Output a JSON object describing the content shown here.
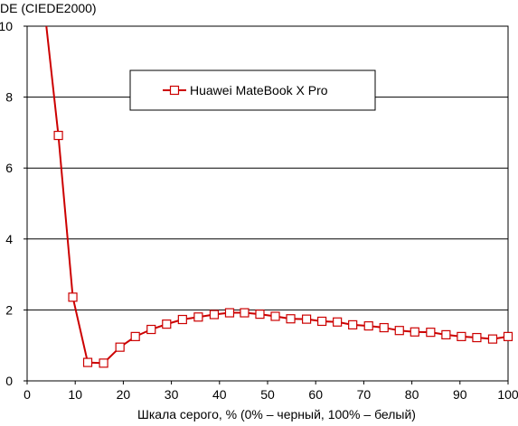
{
  "chart_data": {
    "type": "line",
    "ylabel": "DE (CIEDE2000)",
    "xlabel": "Шкала серого, % (0% – черный, 100% – белый)",
    "xlim": [
      0,
      100
    ],
    "ylim": [
      0,
      10
    ],
    "xticks": [
      "0",
      "10",
      "20",
      "30",
      "40",
      "50",
      "60",
      "70",
      "80",
      "90",
      "100"
    ],
    "yticks": [
      "0",
      "2",
      "4",
      "6",
      "8",
      "10"
    ],
    "grid": "horizontal",
    "legend_position": "top-center",
    "series": [
      {
        "name": "Huawei MateBook X Pro",
        "color": "#cc0000",
        "marker": "open-square",
        "line_start": {
          "x": 4.0,
          "y": 10.0
        },
        "x": [
          6.5,
          9.5,
          12.6,
          15.9,
          19.3,
          22.5,
          25.8,
          29.0,
          32.3,
          35.6,
          38.9,
          42.1,
          45.2,
          48.4,
          51.6,
          54.8,
          58.1,
          61.3,
          64.5,
          67.7,
          71.0,
          74.2,
          77.4,
          80.6,
          83.9,
          87.1,
          90.3,
          93.5,
          96.8,
          100.0
        ],
        "y": [
          6.92,
          2.36,
          0.52,
          0.5,
          0.95,
          1.25,
          1.45,
          1.6,
          1.73,
          1.8,
          1.87,
          1.92,
          1.92,
          1.88,
          1.82,
          1.75,
          1.74,
          1.68,
          1.66,
          1.58,
          1.55,
          1.5,
          1.42,
          1.38,
          1.37,
          1.3,
          1.25,
          1.22,
          1.18,
          1.25
        ]
      }
    ]
  }
}
